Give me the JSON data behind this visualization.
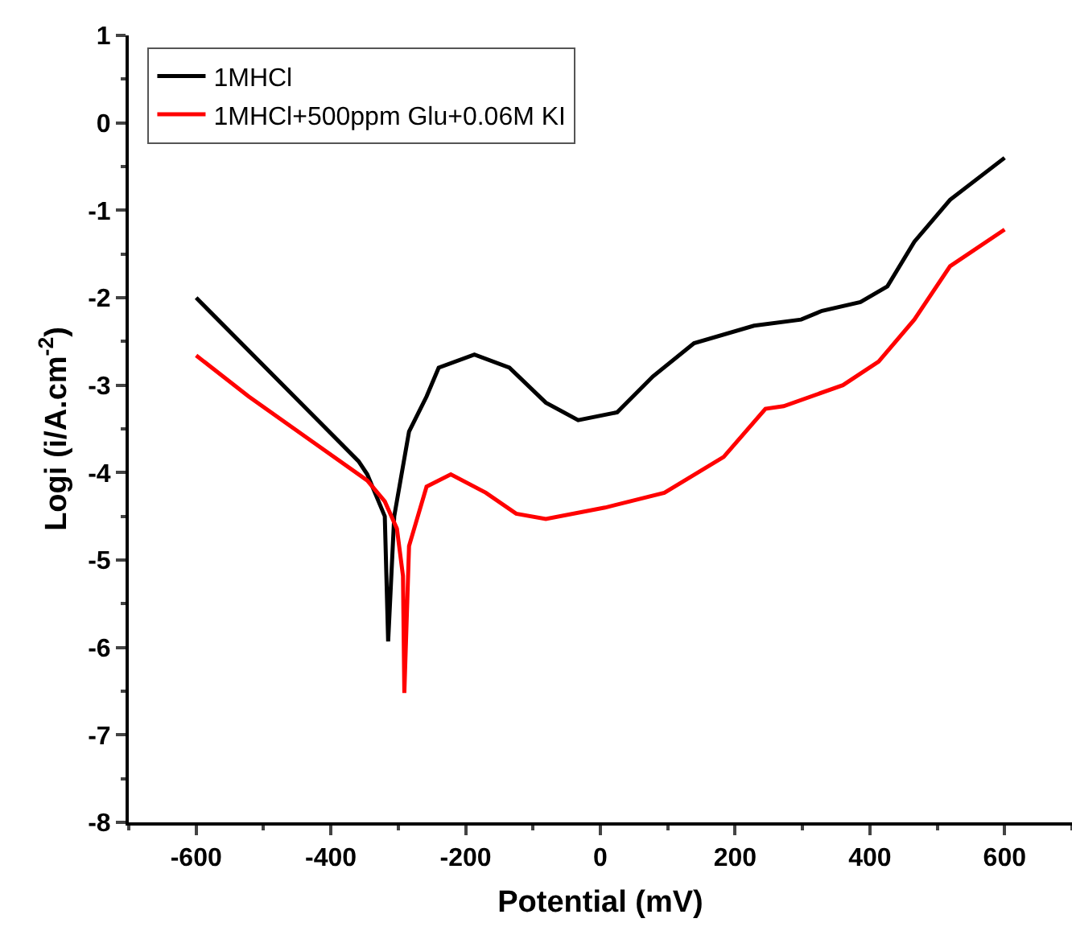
{
  "chart_data": {
    "type": "line",
    "xlabel": "Potential (mV)",
    "ylabel": "Logi (i/A.cm$^{-2}$)",
    "xlim": [
      -700,
      700
    ],
    "ylim": [
      -8,
      1
    ],
    "xticks": [
      -600,
      -400,
      -200,
      0,
      200,
      400,
      600
    ],
    "yticks": [
      -8,
      -7,
      -6,
      -5,
      -4,
      -3,
      -2,
      -1,
      0,
      1
    ],
    "grid": false,
    "legend": "top left",
    "marker": "none",
    "line_style": "solid",
    "series": [
      {
        "name": "1MHCl",
        "color": "#000000",
        "x": [
          -600,
          -359,
          -346,
          -320,
          -315,
          -306,
          -284,
          -258,
          -240,
          -187,
          -135,
          -81,
          -33,
          25,
          78,
          139,
          228,
          298,
          329,
          386,
          426,
          466,
          519,
          600
        ],
        "values": [
          -2.0,
          -3.87,
          -4.02,
          -4.5,
          -5.93,
          -4.5,
          -3.53,
          -3.13,
          -2.8,
          -2.65,
          -2.8,
          -3.2,
          -3.4,
          -3.31,
          -2.9,
          -2.52,
          -2.32,
          -2.25,
          -2.15,
          -2.05,
          -1.87,
          -1.36,
          -0.88,
          -0.4
        ]
      },
      {
        "name": "1MHCl+500ppm Glu+0.06M KI",
        "color": "#ff0000",
        "x": [
          -600,
          -522,
          -434,
          -346,
          -320,
          -302,
          -293,
          -291,
          -284,
          -258,
          -222,
          -170,
          -125,
          -81,
          7,
          95,
          183,
          245,
          272,
          360,
          413,
          466,
          519,
          600
        ],
        "values": [
          -2.66,
          -3.13,
          -3.61,
          -4.09,
          -4.33,
          -4.64,
          -5.18,
          -6.52,
          -4.84,
          -4.16,
          -4.02,
          -4.23,
          -4.47,
          -4.53,
          -4.4,
          -4.23,
          -3.82,
          -3.27,
          -3.24,
          -3.0,
          -2.73,
          -2.25,
          -1.64,
          -1.22
        ]
      }
    ]
  }
}
